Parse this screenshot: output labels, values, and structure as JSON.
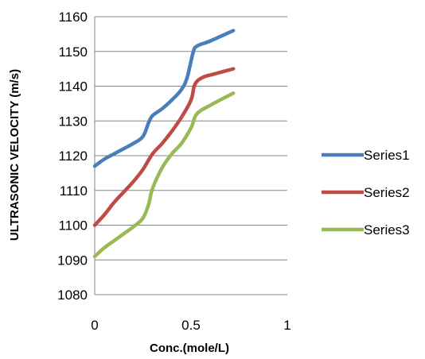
{
  "chart_data": {
    "type": "line",
    "title": "",
    "xlabel": "Conc.(mole/L)",
    "ylabel": "ULTRASONIC VELOCITY (m/s)",
    "xlim": [
      0,
      1
    ],
    "ylim": [
      1080,
      1160
    ],
    "x_ticks": [
      "0",
      "0.5",
      "1"
    ],
    "y_ticks": [
      "1080",
      "1090",
      "1100",
      "1110",
      "1120",
      "1130",
      "1140",
      "1150",
      "1160"
    ],
    "grid": "horizontal",
    "legend_position": "right",
    "series": [
      {
        "name": "Series1",
        "color": "#4A7EBB",
        "points": [
          [
            0,
            1117
          ],
          [
            0.05,
            1119
          ],
          [
            0.1,
            1120.5
          ],
          [
            0.15,
            1122
          ],
          [
            0.2,
            1123.5
          ],
          [
            0.25,
            1125.5
          ],
          [
            0.28,
            1129.5
          ],
          [
            0.3,
            1131.5
          ],
          [
            0.35,
            1133.5
          ],
          [
            0.4,
            1136
          ],
          [
            0.45,
            1139
          ],
          [
            0.48,
            1142.5
          ],
          [
            0.51,
            1149.5
          ],
          [
            0.53,
            1151.5
          ],
          [
            0.6,
            1153
          ],
          [
            0.72,
            1156
          ]
        ]
      },
      {
        "name": "Series2",
        "color": "#BE4B48",
        "points": [
          [
            0,
            1100
          ],
          [
            0.05,
            1103
          ],
          [
            0.1,
            1106.5
          ],
          [
            0.15,
            1109.5
          ],
          [
            0.2,
            1112.5
          ],
          [
            0.25,
            1116
          ],
          [
            0.3,
            1120.5
          ],
          [
            0.35,
            1123.5
          ],
          [
            0.4,
            1127
          ],
          [
            0.45,
            1131
          ],
          [
            0.5,
            1136
          ],
          [
            0.52,
            1140.5
          ],
          [
            0.56,
            1142.5
          ],
          [
            0.62,
            1143.5
          ],
          [
            0.72,
            1145
          ]
        ]
      },
      {
        "name": "Series3",
        "color": "#98B954",
        "points": [
          [
            0,
            1091
          ],
          [
            0.05,
            1093.5
          ],
          [
            0.1,
            1095.5
          ],
          [
            0.15,
            1097.5
          ],
          [
            0.2,
            1099.5
          ],
          [
            0.25,
            1102
          ],
          [
            0.28,
            1106
          ],
          [
            0.3,
            1110.5
          ],
          [
            0.35,
            1116.5
          ],
          [
            0.4,
            1120.5
          ],
          [
            0.45,
            1123.5
          ],
          [
            0.5,
            1128
          ],
          [
            0.53,
            1132
          ],
          [
            0.6,
            1134.5
          ],
          [
            0.72,
            1138
          ]
        ]
      }
    ]
  }
}
